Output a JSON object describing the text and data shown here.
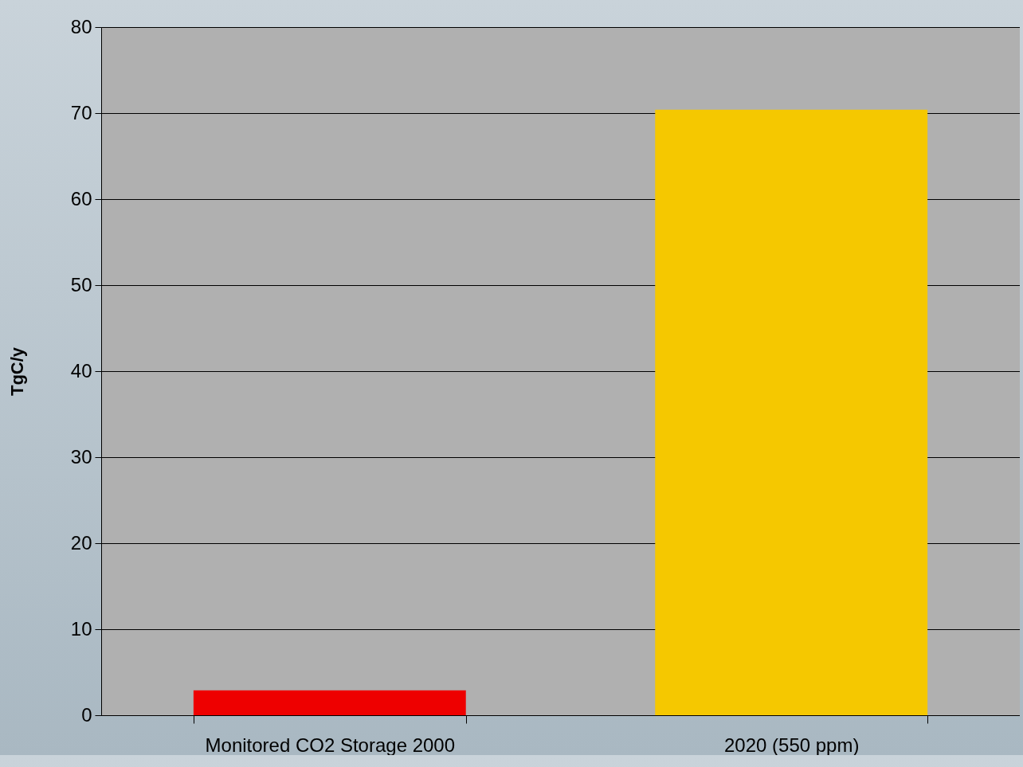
{
  "chart_data": {
    "type": "bar",
    "ylabel": "TgC/y",
    "categories": [
      "Monitored CO2 Storage 2000",
      "2020 (550 ppm)"
    ],
    "values": [
      2.9,
      70.4
    ],
    "colors": [
      "#ee0000",
      "#f5c800"
    ],
    "ylim": [
      0,
      80
    ],
    "yticks": [
      0,
      10,
      20,
      30,
      40,
      50,
      60,
      70,
      80
    ],
    "grid": "y"
  }
}
